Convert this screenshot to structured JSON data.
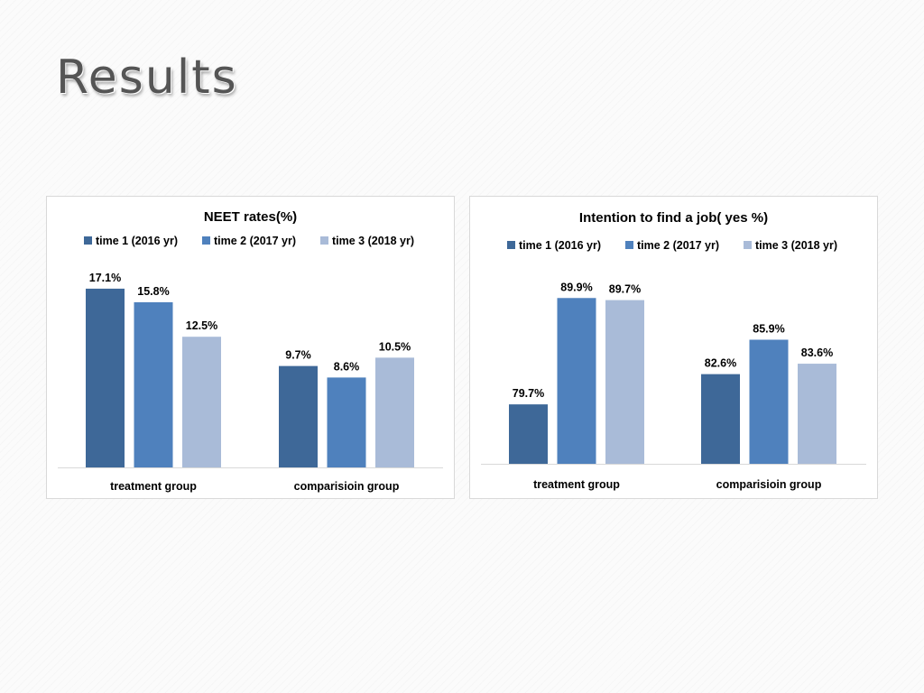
{
  "slide": {
    "title": "Results"
  },
  "colors": {
    "time1": "#3e6898",
    "time2": "#4f81bd",
    "time3": "#a9bbd8",
    "axis": "#d9d9d9"
  },
  "chart_data": [
    {
      "type": "bar",
      "title": "NEET rates(%)",
      "categories": [
        "treatment group",
        "comparisioin group"
      ],
      "series": [
        {
          "name": "time 1 (2016 yr)",
          "values": [
            17.1,
            9.7
          ],
          "labels": [
            "17.1%",
            "9.7%"
          ]
        },
        {
          "name": "time 2 (2017 yr)",
          "values": [
            15.8,
            8.6
          ],
          "labels": [
            "15.8%",
            "8.6%"
          ]
        },
        {
          "name": "time 3 (2018 yr)",
          "values": [
            12.5,
            10.5
          ],
          "labels": [
            "12.5%",
            "10.5%"
          ]
        }
      ],
      "ylim": [
        0,
        18.3
      ],
      "legend": "top",
      "grid": false
    },
    {
      "type": "bar",
      "title": "Intention to find a job( yes %)",
      "categories": [
        "treatment group",
        "comparisioin group"
      ],
      "series": [
        {
          "name": "time 1 (2016 yr)",
          "values": [
            79.7,
            82.6
          ],
          "labels": [
            "79.7%",
            "82.6%"
          ]
        },
        {
          "name": "time 2 (2017 yr)",
          "values": [
            89.9,
            85.9
          ],
          "labels": [
            "89.9%",
            "85.9%"
          ]
        },
        {
          "name": "time 3 (2018 yr)",
          "values": [
            89.7,
            83.6
          ],
          "labels": [
            "89.7%",
            "83.6%"
          ]
        }
      ],
      "ylim": [
        74.0,
        92.0
      ],
      "legend": "top",
      "grid": false
    }
  ]
}
